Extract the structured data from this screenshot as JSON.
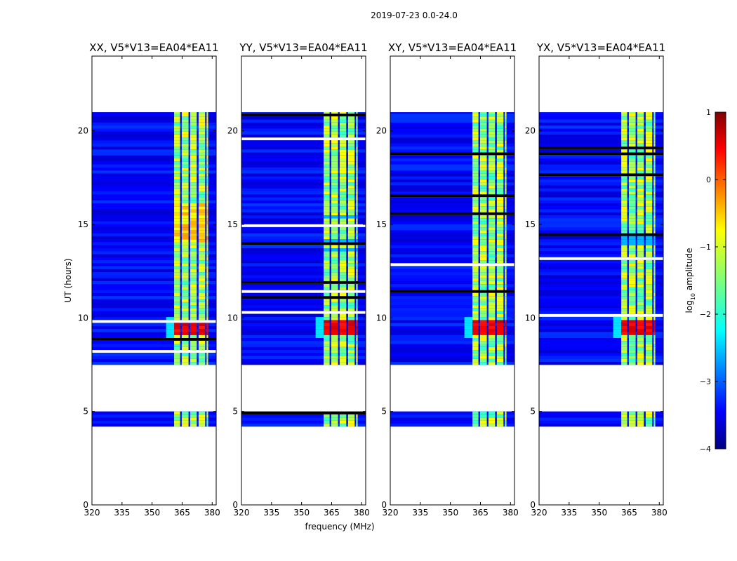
{
  "figure": {
    "suptitle": "2019-07-23 0.0-24.0",
    "xlabel": "frequency (MHz)",
    "ylabel": "UT (hours)"
  },
  "chart_data": {
    "type": "heatmap",
    "panels": [
      {
        "title": "XX, V5*V13=EA04*EA11",
        "pol": "XX"
      },
      {
        "title": "YY, V5*V13=EA04*EA11",
        "pol": "YY"
      },
      {
        "title": "XY, V5*V13=EA04*EA11",
        "pol": "XY"
      },
      {
        "title": "YX, V5*V13=EA04*EA11",
        "pol": "YX"
      }
    ],
    "x_axis": {
      "label": "frequency (MHz)",
      "range": [
        320,
        382
      ],
      "ticks": [
        "320",
        "335",
        "350",
        "365",
        "380"
      ]
    },
    "y_axis": {
      "label": "UT (hours)",
      "range": [
        0,
        24
      ],
      "ticks": [
        "0",
        "5",
        "10",
        "15",
        "20"
      ]
    },
    "data_coverage_ut_hours": [
      [
        4.2,
        5.0
      ],
      [
        7.5,
        21.0
      ]
    ],
    "rfi_band_mhz": [
      361,
      378
    ],
    "bright_rfi_ut_hours": [
      9.0,
      9.8
    ],
    "colorbar": {
      "label": "log10 amplitude",
      "label_main": "log",
      "label_sub": "10",
      "label_tail": " amplitude",
      "range": [
        -4,
        1
      ],
      "ticks": [
        "1",
        "0",
        "−1",
        "−2",
        "−3",
        "−4"
      ],
      "colormap": "jet"
    }
  }
}
